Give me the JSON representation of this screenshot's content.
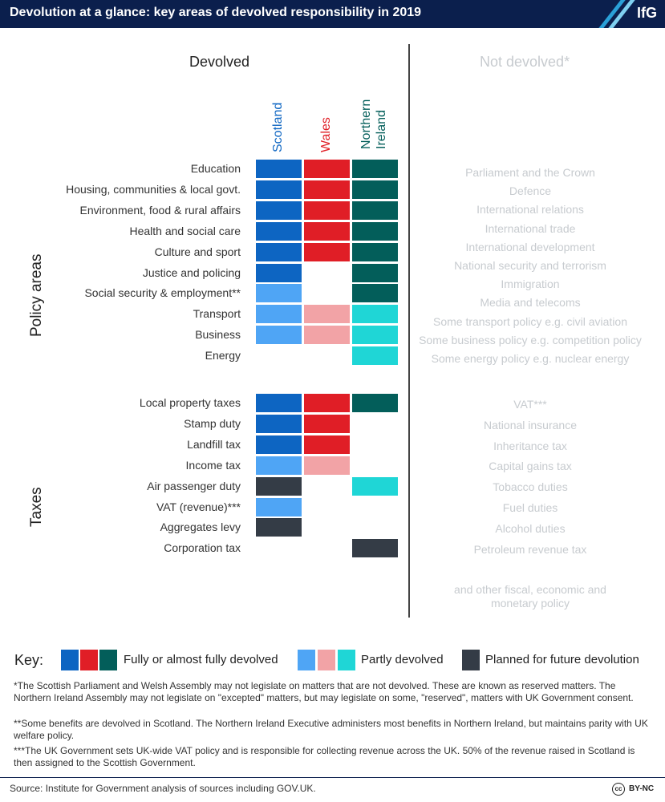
{
  "header": {
    "title": "Devolution at a glance: key areas of devolved responsibility in 2019",
    "logo": "IfG"
  },
  "colors": {
    "header_bg": "#0b1f4d",
    "scotland_full": "#0d65c2",
    "wales_full": "#e01e26",
    "ni_full": "#035e5a",
    "scotland_partial": "#4fa5f5",
    "wales_partial": "#f2a3a6",
    "ni_partial": "#1fd6d6",
    "planned": "#343c46"
  },
  "chart_data": {
    "type": "table",
    "title": "Devolution at a glance: key areas of devolved responsibility in 2019",
    "devolved_heading": "Devolved",
    "not_devolved_heading": "Not devolved*",
    "nations": [
      "Scotland",
      "Wales",
      "Northern\nIreland"
    ],
    "sections": [
      {
        "label": "Policy areas",
        "rows": [
          {
            "label": "Education",
            "status": [
              "full",
              "full",
              "full"
            ]
          },
          {
            "label": "Housing, communities & local govt.",
            "status": [
              "full",
              "full",
              "full"
            ]
          },
          {
            "label": "Environment, food & rural affairs",
            "status": [
              "full",
              "full",
              "full"
            ]
          },
          {
            "label": "Health and social care",
            "status": [
              "full",
              "full",
              "full"
            ]
          },
          {
            "label": "Culture and sport",
            "status": [
              "full",
              "full",
              "full"
            ]
          },
          {
            "label": "Justice and policing",
            "status": [
              "full",
              "none",
              "full"
            ]
          },
          {
            "label": "Social security & employment**",
            "status": [
              "partial",
              "none",
              "full"
            ]
          },
          {
            "label": "Transport",
            "status": [
              "partial",
              "partial",
              "partial"
            ]
          },
          {
            "label": "Business",
            "status": [
              "partial",
              "partial",
              "partial"
            ]
          },
          {
            "label": "Energy",
            "status": [
              "none",
              "none",
              "partial"
            ]
          }
        ],
        "not_devolved": [
          "Parliament and the Crown",
          "Defence",
          "International relations",
          "International trade",
          "International development",
          "National security and terrorism",
          "Immigration",
          "Media and telecoms",
          "Some transport policy e.g. civil aviation",
          "Some business policy e.g. competition policy",
          "Some energy policy e.g. nuclear energy"
        ]
      },
      {
        "label": "Taxes",
        "rows": [
          {
            "label": "Local property taxes",
            "status": [
              "full",
              "full",
              "full"
            ]
          },
          {
            "label": "Stamp duty",
            "status": [
              "full",
              "full",
              "none"
            ]
          },
          {
            "label": "Landfill tax",
            "status": [
              "full",
              "full",
              "none"
            ]
          },
          {
            "label": "Income tax",
            "status": [
              "partial",
              "partial",
              "none"
            ]
          },
          {
            "label": "Air passenger duty",
            "status": [
              "planned",
              "none",
              "partial"
            ]
          },
          {
            "label": "VAT (revenue)***",
            "status": [
              "partial",
              "none",
              "none"
            ]
          },
          {
            "label": "Aggregates levy",
            "status": [
              "planned",
              "none",
              "none"
            ]
          },
          {
            "label": "Corporation tax",
            "status": [
              "none",
              "none",
              "planned"
            ]
          }
        ],
        "not_devolved": [
          "VAT***",
          "National insurance",
          "Inheritance tax",
          "Capital gains tax",
          "Tobacco duties",
          "Fuel duties",
          "Alcohol duties",
          "Petroleum revenue tax"
        ]
      }
    ],
    "not_devolved_footer": "and other fiscal, economic and\nmonetary policy",
    "key": {
      "title": "Key:",
      "full": "Fully or almost fully devolved",
      "partial": "Partly devolved",
      "planned": "Planned for future devolution"
    }
  },
  "footnotes": [
    "*The Scottish Parliament and Welsh Assembly may not legislate on matters that are not devolved. These are known as reserved matters. The Northern Ireland Assembly may not legislate on \"excepted\" matters, but may legislate on some, \"reserved\", matters with UK Government consent.",
    "**Some benefits are devolved in Scotland. The Northern Ireland Executive administers most benefits in Northern Ireland, but maintains parity with UK welfare policy.",
    "***The UK Government sets UK-wide VAT policy and is responsible for collecting revenue across the UK. 50% of the revenue raised in Scotland is then assigned to the Scottish Government."
  ],
  "source": "Source: Institute for Government analysis of sources including GOV.UK.",
  "license": {
    "cc": "cc",
    "text": "BY-NC"
  }
}
